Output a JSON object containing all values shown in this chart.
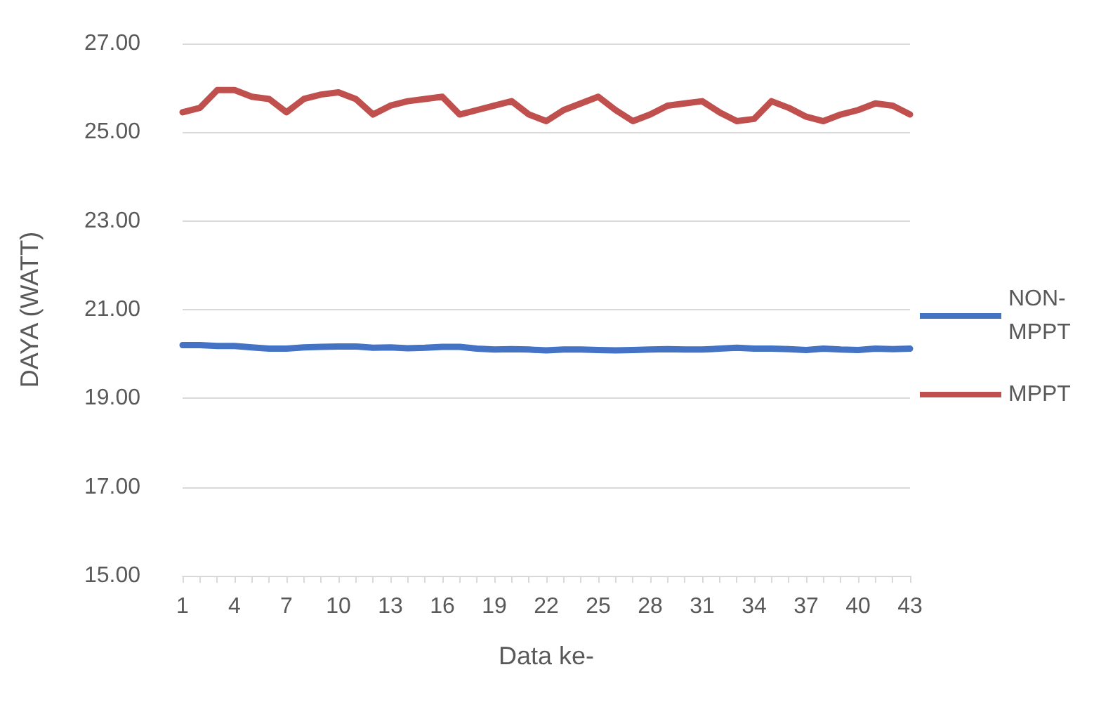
{
  "chart_data": {
    "type": "line",
    "xlabel": "Data ke-",
    "ylabel": "DAYA (WATT)",
    "categories": [
      "1",
      null,
      null,
      "4",
      null,
      null,
      "7",
      null,
      null,
      "10",
      null,
      null,
      "13",
      null,
      null,
      "16",
      null,
      null,
      "19",
      null,
      null,
      "22",
      null,
      null,
      "25",
      null,
      null,
      "28",
      null,
      null,
      "31",
      null,
      null,
      "34",
      null,
      null,
      "37",
      null,
      null,
      "40",
      null,
      null,
      "43"
    ],
    "series": [
      {
        "name": "NON-MPPT",
        "color": "#4472c4",
        "values": [
          20.2,
          20.2,
          20.18,
          20.18,
          20.15,
          20.12,
          20.12,
          20.15,
          20.16,
          20.17,
          20.17,
          20.14,
          20.15,
          20.13,
          20.14,
          20.16,
          20.16,
          20.12,
          20.1,
          20.11,
          20.1,
          20.08,
          20.1,
          20.1,
          20.09,
          20.08,
          20.09,
          20.1,
          20.11,
          20.1,
          20.1,
          20.12,
          20.14,
          20.12,
          20.12,
          20.11,
          20.09,
          20.12,
          20.1,
          20.09,
          20.12,
          20.11,
          20.12
        ]
      },
      {
        "name": "MPPT",
        "color": "#c0504d",
        "values": [
          25.45,
          25.55,
          25.95,
          25.95,
          25.8,
          25.75,
          25.45,
          25.75,
          25.85,
          25.9,
          25.75,
          25.4,
          25.6,
          25.7,
          25.75,
          25.8,
          25.4,
          25.5,
          25.6,
          25.7,
          25.4,
          25.25,
          25.5,
          25.65,
          25.8,
          25.5,
          25.25,
          25.4,
          25.6,
          25.65,
          25.7,
          25.45,
          25.25,
          25.3,
          25.7,
          25.55,
          25.35,
          25.25,
          25.4,
          25.5,
          25.65,
          25.6,
          25.4
        ]
      }
    ],
    "ylim": [
      15,
      27
    ],
    "yticks": [
      {
        "value": 15,
        "label": "15.00"
      },
      {
        "value": 17,
        "label": "17.00"
      },
      {
        "value": 19,
        "label": "19.00"
      },
      {
        "value": 21,
        "label": "21.00"
      },
      {
        "value": 23,
        "label": "23.00"
      },
      {
        "value": 25,
        "label": "25.00"
      },
      {
        "value": 27,
        "label": "27.00"
      }
    ],
    "grid": "y",
    "legend": "right",
    "marker": "none",
    "line_style": "solid"
  }
}
